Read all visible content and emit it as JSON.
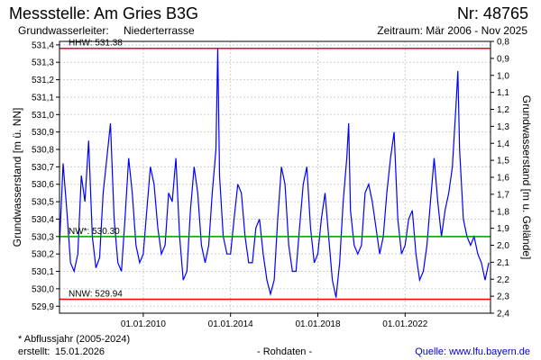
{
  "header": {
    "station_title": "Messstelle: Am Gries B3G",
    "station_number": "Nr: 48765",
    "aquifer_label": "Grundwasserleiter:",
    "aquifer_value": "Niederterrasse",
    "period": "Zeitraum: Mär 2006 - Nov 2025"
  },
  "footer": {
    "note": "* Abflussjahr (2005-2024)",
    "created_label": "erstellt:",
    "created_date": "15.01.2026",
    "data_type": "- Rohdaten -",
    "source": "Quelle: www.lfu.bayern.de"
  },
  "chart_data": {
    "type": "line",
    "title": "",
    "ylabel_left": "Grundwasserstand [m ü. NN]",
    "ylabel_right": "Grundwasserstand [m u. Gelände]",
    "ylim_left": [
      529.86,
      531.42
    ],
    "ylim_right": [
      2.4,
      0.8
    ],
    "yticks_left": [
      "529,9",
      "530,0",
      "530,1",
      "530,2",
      "530,3",
      "530,4",
      "530,5",
      "530,6",
      "530,7",
      "530,8",
      "530,9",
      "531,0",
      "531,1",
      "531,2",
      "531,3",
      "531,4"
    ],
    "yticks_right": [
      "0,8",
      "0,9",
      "1,0",
      "1,1",
      "1,2",
      "1,3",
      "1,4",
      "1,5",
      "1,6",
      "1,7",
      "1,8",
      "1,9",
      "2,0",
      "2,1",
      "2,2",
      "2,3",
      "2,4"
    ],
    "xticks": [
      "01.01.2010",
      "01.01.2014",
      "01.01.2018",
      "01.01.2022"
    ],
    "xlim": [
      "2006-03-01",
      "2025-11-30"
    ],
    "grid": true,
    "reference_lines": [
      {
        "label": "HHW: 531.38",
        "value": 531.38,
        "color": "#ff0000"
      },
      {
        "label": "NW*: 530.30",
        "value": 530.3,
        "color": "#009900"
      },
      {
        "label": "NNW: 529.94",
        "value": 529.94,
        "color": "#ff0000"
      }
    ],
    "series": [
      {
        "color": "#0000ff",
        "points": [
          [
            "2006-03-01",
            530.25
          ],
          [
            "2006-05-01",
            530.72
          ],
          [
            "2006-07-01",
            530.45
          ],
          [
            "2006-09-01",
            530.15
          ],
          [
            "2006-11-01",
            530.1
          ],
          [
            "2007-01-01",
            530.2
          ],
          [
            "2007-03-01",
            530.65
          ],
          [
            "2007-05-01",
            530.5
          ],
          [
            "2007-07-01",
            530.85
          ],
          [
            "2007-09-01",
            530.3
          ],
          [
            "2007-11-01",
            530.12
          ],
          [
            "2008-01-01",
            530.18
          ],
          [
            "2008-03-01",
            530.55
          ],
          [
            "2008-05-01",
            530.75
          ],
          [
            "2008-07-01",
            530.95
          ],
          [
            "2008-09-01",
            530.4
          ],
          [
            "2008-11-01",
            530.15
          ],
          [
            "2009-01-01",
            530.1
          ],
          [
            "2009-03-01",
            530.4
          ],
          [
            "2009-05-01",
            530.75
          ],
          [
            "2009-07-01",
            530.55
          ],
          [
            "2009-09-01",
            530.25
          ],
          [
            "2009-11-01",
            530.15
          ],
          [
            "2010-01-01",
            530.2
          ],
          [
            "2010-03-01",
            530.45
          ],
          [
            "2010-05-01",
            530.7
          ],
          [
            "2010-07-01",
            530.6
          ],
          [
            "2010-09-01",
            530.35
          ],
          [
            "2010-11-01",
            530.2
          ],
          [
            "2011-01-01",
            530.25
          ],
          [
            "2011-03-01",
            530.55
          ],
          [
            "2011-05-01",
            530.5
          ],
          [
            "2011-07-01",
            530.75
          ],
          [
            "2011-09-01",
            530.3
          ],
          [
            "2011-11-01",
            530.05
          ],
          [
            "2012-01-01",
            530.1
          ],
          [
            "2012-03-01",
            530.45
          ],
          [
            "2012-05-01",
            530.7
          ],
          [
            "2012-07-01",
            530.55
          ],
          [
            "2012-09-01",
            530.25
          ],
          [
            "2012-11-01",
            530.15
          ],
          [
            "2013-01-01",
            530.25
          ],
          [
            "2013-03-01",
            530.55
          ],
          [
            "2013-05-01",
            530.8
          ],
          [
            "2013-06-01",
            531.38
          ],
          [
            "2013-07-01",
            530.65
          ],
          [
            "2013-09-01",
            530.3
          ],
          [
            "2013-11-01",
            530.2
          ],
          [
            "2014-01-01",
            530.2
          ],
          [
            "2014-03-01",
            530.4
          ],
          [
            "2014-05-01",
            530.6
          ],
          [
            "2014-07-01",
            530.55
          ],
          [
            "2014-09-01",
            530.3
          ],
          [
            "2014-11-01",
            530.15
          ],
          [
            "2015-01-01",
            530.15
          ],
          [
            "2015-03-01",
            530.35
          ],
          [
            "2015-05-01",
            530.4
          ],
          [
            "2015-07-01",
            530.2
          ],
          [
            "2015-09-01",
            530.05
          ],
          [
            "2015-11-01",
            529.97
          ],
          [
            "2016-01-01",
            530.05
          ],
          [
            "2016-03-01",
            530.4
          ],
          [
            "2016-05-01",
            530.7
          ],
          [
            "2016-07-01",
            530.6
          ],
          [
            "2016-09-01",
            530.25
          ],
          [
            "2016-11-01",
            530.1
          ],
          [
            "2017-01-01",
            530.1
          ],
          [
            "2017-03-01",
            530.35
          ],
          [
            "2017-05-01",
            530.6
          ],
          [
            "2017-07-01",
            530.7
          ],
          [
            "2017-09-01",
            530.35
          ],
          [
            "2017-11-01",
            530.15
          ],
          [
            "2018-01-01",
            530.2
          ],
          [
            "2018-03-01",
            530.4
          ],
          [
            "2018-05-01",
            530.55
          ],
          [
            "2018-07-01",
            530.3
          ],
          [
            "2018-09-01",
            530.05
          ],
          [
            "2018-11-01",
            529.95
          ],
          [
            "2019-01-01",
            530.15
          ],
          [
            "2019-03-01",
            530.5
          ],
          [
            "2019-05-01",
            530.75
          ],
          [
            "2019-06-01",
            530.95
          ],
          [
            "2019-07-01",
            530.45
          ],
          [
            "2019-09-01",
            530.25
          ],
          [
            "2019-11-01",
            530.2
          ],
          [
            "2020-01-01",
            530.25
          ],
          [
            "2020-03-01",
            530.55
          ],
          [
            "2020-05-01",
            530.6
          ],
          [
            "2020-07-01",
            530.5
          ],
          [
            "2020-09-01",
            530.35
          ],
          [
            "2020-11-01",
            530.2
          ],
          [
            "2021-01-01",
            530.3
          ],
          [
            "2021-03-01",
            530.55
          ],
          [
            "2021-05-01",
            530.75
          ],
          [
            "2021-07-01",
            530.9
          ],
          [
            "2021-09-01",
            530.4
          ],
          [
            "2021-11-01",
            530.2
          ],
          [
            "2022-01-01",
            530.25
          ],
          [
            "2022-03-01",
            530.4
          ],
          [
            "2022-05-01",
            530.45
          ],
          [
            "2022-07-01",
            530.2
          ],
          [
            "2022-09-01",
            530.05
          ],
          [
            "2022-11-01",
            530.1
          ],
          [
            "2023-01-01",
            530.25
          ],
          [
            "2023-03-01",
            530.5
          ],
          [
            "2023-05-01",
            530.75
          ],
          [
            "2023-07-01",
            530.5
          ],
          [
            "2023-09-01",
            530.3
          ],
          [
            "2023-11-01",
            530.45
          ],
          [
            "2024-01-01",
            530.55
          ],
          [
            "2024-03-01",
            530.7
          ],
          [
            "2024-05-01",
            531.05
          ],
          [
            "2024-06-01",
            531.25
          ],
          [
            "2024-07-01",
            530.8
          ],
          [
            "2024-09-01",
            530.4
          ],
          [
            "2024-11-01",
            530.3
          ],
          [
            "2025-01-01",
            530.25
          ],
          [
            "2025-03-01",
            530.3
          ],
          [
            "2025-05-01",
            530.2
          ],
          [
            "2025-07-01",
            530.15
          ],
          [
            "2025-09-01",
            530.05
          ],
          [
            "2025-11-01",
            530.15
          ]
        ]
      }
    ]
  }
}
